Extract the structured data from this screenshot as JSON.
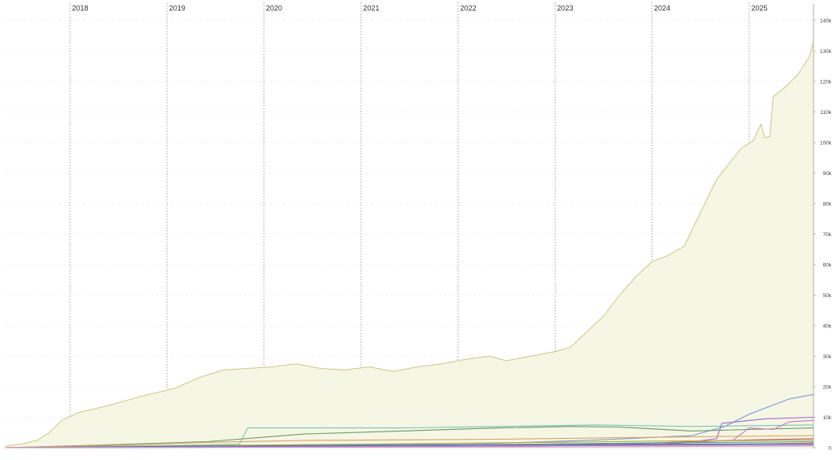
{
  "chart_data": {
    "type": "area",
    "title": "",
    "xlabel": "",
    "ylabel": "",
    "x_axis": {
      "kind": "date",
      "range": [
        "2017-05-01",
        "2025-08-31"
      ],
      "year_markers": [
        "2018",
        "2019",
        "2020",
        "2021",
        "2022",
        "2023",
        "2024",
        "2025"
      ],
      "year_marker_dates": [
        "2018-01-01",
        "2019-01-01",
        "2020-01-01",
        "2021-01-01",
        "2022-01-01",
        "2023-01-01",
        "2024-01-01",
        "2025-01-01"
      ],
      "grid": "dotted vertical lines at each year"
    },
    "y_axis": {
      "position": "right",
      "ylim": [
        0,
        140000
      ],
      "ticks": [
        0,
        10000,
        20000,
        30000,
        40000,
        50000,
        60000,
        70000,
        80000,
        90000,
        100000,
        110000,
        120000,
        130000,
        140000
      ],
      "tick_labels": [
        "0",
        "10k",
        "20k",
        "30k",
        "40k",
        "50k",
        "60k",
        "70k",
        "80k",
        "90k",
        "100k",
        "110k",
        "120k",
        "130k",
        "140k"
      ],
      "grid": "dashed horizontal lines at each tick"
    },
    "legend": "none",
    "series": [
      {
        "color": "#c8c88a",
        "fill": "#f6f6e4",
        "filled": true,
        "points": [
          [
            "2017-05-01",
            500
          ],
          [
            "2017-07-01",
            1200
          ],
          [
            "2017-09-01",
            2500
          ],
          [
            "2017-10-15",
            5000
          ],
          [
            "2017-12-01",
            9000
          ],
          [
            "2018-02-01",
            11500
          ],
          [
            "2018-06-01",
            14000
          ],
          [
            "2018-10-01",
            17000
          ],
          [
            "2019-02-01",
            19500
          ],
          [
            "2019-05-01",
            23000
          ],
          [
            "2019-08-01",
            25500
          ],
          [
            "2019-11-01",
            26000
          ],
          [
            "2020-02-01",
            26500
          ],
          [
            "2020-05-01",
            27500
          ],
          [
            "2020-08-01",
            26000
          ],
          [
            "2020-11-01",
            25500
          ],
          [
            "2021-02-01",
            26500
          ],
          [
            "2021-05-01",
            25000
          ],
          [
            "2021-08-01",
            26500
          ],
          [
            "2021-11-01",
            27500
          ],
          [
            "2022-02-01",
            29000
          ],
          [
            "2022-05-01",
            30000
          ],
          [
            "2022-07-01",
            28500
          ],
          [
            "2022-10-01",
            30000
          ],
          [
            "2023-01-01",
            31500
          ],
          [
            "2023-03-01",
            33000
          ],
          [
            "2023-05-01",
            38000
          ],
          [
            "2023-07-01",
            43000
          ],
          [
            "2023-09-01",
            50000
          ],
          [
            "2023-11-01",
            56000
          ],
          [
            "2024-01-01",
            61000
          ],
          [
            "2024-03-01",
            63000
          ],
          [
            "2024-05-01",
            66000
          ],
          [
            "2024-07-01",
            77000
          ],
          [
            "2024-09-01",
            88000
          ],
          [
            "2024-12-01",
            98000
          ],
          [
            "2025-01-15",
            100500
          ],
          [
            "2025-02-15",
            106000
          ],
          [
            "2025-03-01",
            101500
          ],
          [
            "2025-03-20",
            102000
          ],
          [
            "2025-04-01",
            115000
          ],
          [
            "2025-05-15",
            118000
          ],
          [
            "2025-07-01",
            122000
          ],
          [
            "2025-08-15",
            128000
          ],
          [
            "2025-08-31",
            133000
          ]
        ]
      },
      {
        "color": "#7b9bd1",
        "points": [
          [
            "2017-05-01",
            0
          ],
          [
            "2019-01-01",
            500
          ],
          [
            "2021-01-01",
            1000
          ],
          [
            "2022-06-01",
            1500
          ],
          [
            "2023-06-01",
            2500
          ],
          [
            "2024-06-01",
            4000
          ],
          [
            "2024-10-01",
            7000
          ],
          [
            "2025-01-01",
            11000
          ],
          [
            "2025-04-01",
            14000
          ],
          [
            "2025-06-01",
            16000
          ],
          [
            "2025-08-31",
            17500
          ]
        ]
      },
      {
        "color": "#6a9a6a",
        "points": [
          [
            "2017-05-01",
            0
          ],
          [
            "2018-06-01",
            1000
          ],
          [
            "2019-06-01",
            2000
          ],
          [
            "2020-06-01",
            4500
          ],
          [
            "2021-06-01",
            5500
          ],
          [
            "2022-06-01",
            6500
          ],
          [
            "2023-03-01",
            7000
          ],
          [
            "2023-09-01",
            6800
          ],
          [
            "2024-06-01",
            5500
          ],
          [
            "2025-01-01",
            6000
          ],
          [
            "2025-08-31",
            6500
          ]
        ]
      },
      {
        "color": "#7ac4bd",
        "points": [
          [
            "2017-05-01",
            0
          ],
          [
            "2019-06-01",
            1000
          ],
          [
            "2019-10-01",
            1200
          ],
          [
            "2019-11-01",
            6500
          ],
          [
            "2021-06-01",
            6500
          ],
          [
            "2022-06-01",
            7000
          ],
          [
            "2023-06-01",
            7500
          ],
          [
            "2024-06-01",
            7000
          ],
          [
            "2025-08-31",
            7500
          ]
        ]
      },
      {
        "color": "#9b6ccc",
        "points": [
          [
            "2017-05-01",
            0
          ],
          [
            "2021-01-01",
            300
          ],
          [
            "2023-06-01",
            800
          ],
          [
            "2024-06-01",
            2000
          ],
          [
            "2024-09-01",
            3000
          ],
          [
            "2024-09-20",
            8000
          ],
          [
            "2025-03-01",
            9500
          ],
          [
            "2025-08-31",
            10000
          ]
        ]
      },
      {
        "color": "#c878c8",
        "points": [
          [
            "2017-05-01",
            0
          ],
          [
            "2022-01-01",
            300
          ],
          [
            "2024-01-01",
            1000
          ],
          [
            "2024-11-01",
            2500
          ],
          [
            "2025-01-01",
            6500
          ],
          [
            "2025-04-01",
            6000
          ],
          [
            "2025-06-01",
            8500
          ],
          [
            "2025-08-31",
            9000
          ]
        ]
      },
      {
        "color": "#d8a060",
        "points": [
          [
            "2017-05-01",
            0
          ],
          [
            "2018-06-01",
            800
          ],
          [
            "2019-06-01",
            1800
          ],
          [
            "2020-06-01",
            2400
          ],
          [
            "2021-06-01",
            2600
          ],
          [
            "2022-06-01",
            2800
          ],
          [
            "2023-06-01",
            3200
          ],
          [
            "2024-06-01",
            3600
          ],
          [
            "2025-08-31",
            4000
          ]
        ]
      },
      {
        "color": "#d06070",
        "points": [
          [
            "2017-05-01",
            0
          ],
          [
            "2020-01-01",
            500
          ],
          [
            "2022-01-01",
            900
          ],
          [
            "2024-01-01",
            1600
          ],
          [
            "2025-01-01",
            2600
          ],
          [
            "2025-08-31",
            3000
          ]
        ]
      },
      {
        "color": "#b0b040",
        "points": [
          [
            "2017-05-01",
            0
          ],
          [
            "2019-01-01",
            600
          ],
          [
            "2021-01-01",
            1200
          ],
          [
            "2023-01-01",
            1800
          ],
          [
            "2024-01-01",
            2200
          ],
          [
            "2025-08-31",
            2500
          ]
        ]
      },
      {
        "color": "#5aa0a0",
        "points": [
          [
            "2017-05-01",
            0
          ],
          [
            "2020-06-01",
            400
          ],
          [
            "2022-06-01",
            1000
          ],
          [
            "2023-06-01",
            1400
          ],
          [
            "2025-08-31",
            2000
          ]
        ]
      },
      {
        "color": "#e07a50",
        "points": [
          [
            "2017-05-01",
            0
          ],
          [
            "2021-06-01",
            400
          ],
          [
            "2024-06-01",
            900
          ],
          [
            "2025-08-31",
            1600
          ]
        ]
      },
      {
        "color": "#4a6fb0",
        "points": [
          [
            "2017-05-01",
            0
          ],
          [
            "2018-06-01",
            300
          ],
          [
            "2020-06-01",
            700
          ],
          [
            "2023-06-01",
            1100
          ],
          [
            "2025-08-31",
            1300
          ]
        ]
      },
      {
        "color": "#a080d0",
        "points": [
          [
            "2017-05-01",
            0
          ],
          [
            "2019-06-01",
            300
          ],
          [
            "2022-06-01",
            600
          ],
          [
            "2025-08-31",
            900
          ]
        ]
      },
      {
        "color": "#e0a0d0",
        "points": [
          [
            "2017-05-01",
            0
          ],
          [
            "2023-06-01",
            300
          ],
          [
            "2025-08-31",
            600
          ]
        ]
      }
    ]
  }
}
